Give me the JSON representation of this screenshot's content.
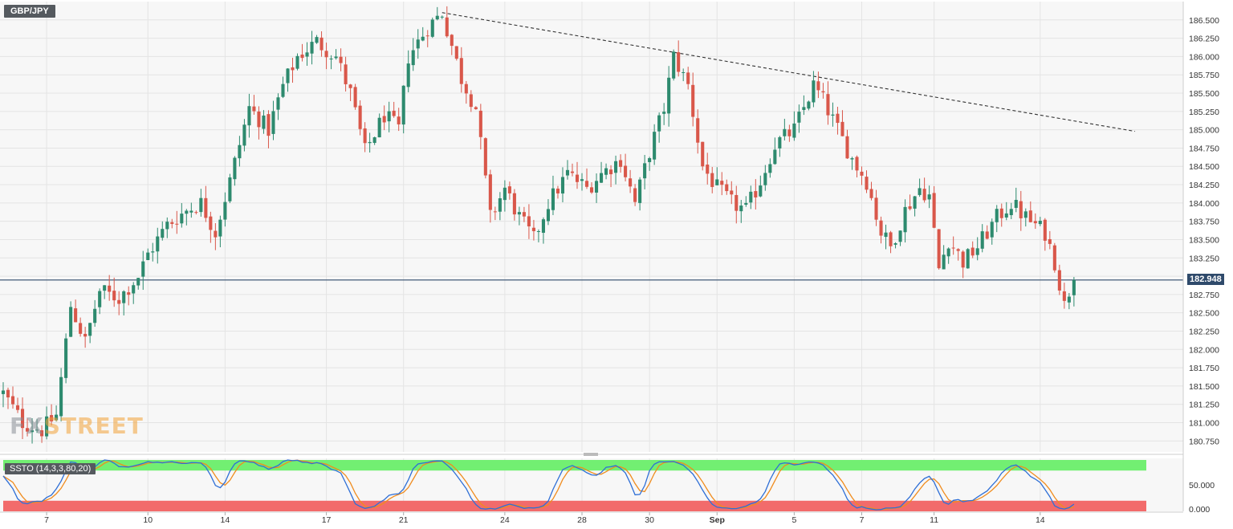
{
  "symbol": "GBP/JPY",
  "watermark": {
    "left": "FX",
    "right": "STREET"
  },
  "current_price_label": "182.948",
  "oscillator_label": "SSTO (14,3,3,80,20)",
  "colors": {
    "up": "#2d8a6e",
    "down": "#d9574a",
    "trendline": "#333333",
    "price_line": "#2f4a6b",
    "overbought_band": "#72ef72",
    "oversold_band": "#f26b6b",
    "k_line": "#2f6fd6",
    "d_line": "#f08c1e"
  },
  "chart_data": {
    "type": "candlestick",
    "price_ticks": [
      "186.500",
      "186.250",
      "186.000",
      "185.750",
      "185.500",
      "185.250",
      "185.000",
      "184.750",
      "184.500",
      "184.250",
      "184.000",
      "183.750",
      "183.500",
      "183.250",
      "183.000",
      "182.750",
      "182.500",
      "182.250",
      "182.000",
      "181.750",
      "181.500",
      "181.250",
      "181.000",
      "180.750"
    ],
    "ylim": [
      180.6,
      186.75
    ],
    "current_price": 182.948,
    "x_labels": [
      {
        "label": "7",
        "index": 9
      },
      {
        "label": "10",
        "index": 30
      },
      {
        "label": "14",
        "index": 46
      },
      {
        "label": "17",
        "index": 67
      },
      {
        "label": "21",
        "index": 83
      },
      {
        "label": "24",
        "index": 104
      },
      {
        "label": "28",
        "index": 120
      },
      {
        "label": "30",
        "index": 134
      },
      {
        "label": "Sep",
        "index": 148,
        "bold": true
      },
      {
        "label": "5",
        "index": 164
      },
      {
        "label": "7",
        "index": 178
      },
      {
        "label": "11",
        "index": 193
      },
      {
        "label": "14",
        "index": 215
      }
    ],
    "trendline": {
      "from": {
        "index": 91,
        "price": 186.6
      },
      "to": {
        "index": 228,
        "price": 185.0
      }
    },
    "oscillator": {
      "ylim": [
        0,
        100
      ],
      "ticks": [
        "50.000",
        "0.000"
      ],
      "overbought": 80,
      "oversold": 20
    }
  }
}
